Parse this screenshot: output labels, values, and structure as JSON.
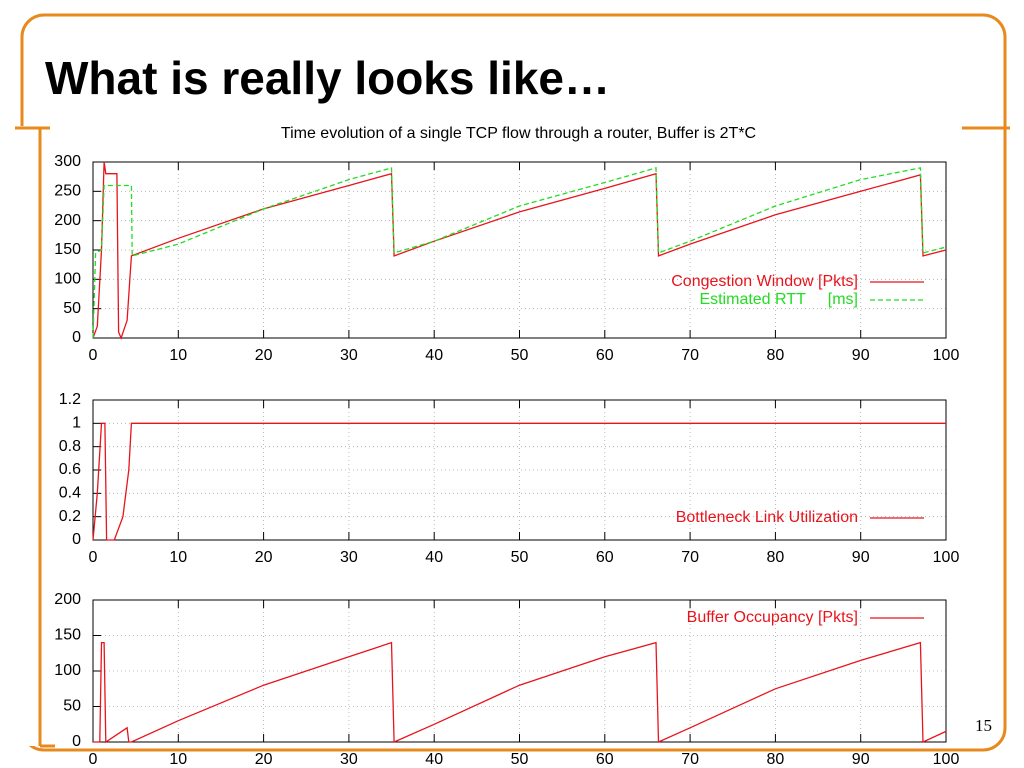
{
  "slide": {
    "title": "What is really looks like…",
    "page_number": "15"
  },
  "chart_data": [
    {
      "type": "line",
      "title": "Time evolution of a single TCP flow through a router, Buffer is 2T*C",
      "xlim": [
        0,
        100
      ],
      "xticks": [
        0,
        10,
        20,
        30,
        40,
        50,
        60,
        70,
        80,
        90,
        100
      ],
      "ylim": [
        0,
        300
      ],
      "yticks": [
        0,
        50,
        100,
        150,
        200,
        250,
        300
      ],
      "grid": true,
      "legend": "lower right",
      "series": [
        {
          "name": "Congestion Window [Pkts]",
          "color": "#e8141c",
          "style": "solid",
          "x": [
            0,
            0.5,
            1,
            1.3,
            1.5,
            2.8,
            3,
            3.3,
            4,
            4.5,
            10,
            20,
            30,
            35,
            35.3,
            40,
            50,
            60,
            66,
            66.3,
            70,
            80,
            90,
            97,
            97.3,
            100
          ],
          "values": [
            0,
            20,
            150,
            300,
            280,
            280,
            10,
            0,
            30,
            140,
            170,
            220,
            260,
            280,
            140,
            165,
            215,
            255,
            280,
            140,
            160,
            210,
            250,
            278,
            140,
            150
          ]
        },
        {
          "name": "Estimated RTT     [ms]",
          "color": "#22dd22",
          "style": "dashed",
          "x": [
            0,
            0.3,
            1,
            1.3,
            4.5,
            4.6,
            10,
            20,
            30,
            35,
            35.3,
            40,
            50,
            60,
            66,
            66.3,
            70,
            80,
            90,
            97,
            97.3,
            100
          ],
          "values": [
            0,
            145,
            150,
            260,
            260,
            140,
            160,
            220,
            270,
            290,
            145,
            165,
            225,
            265,
            290,
            145,
            165,
            225,
            270,
            290,
            145,
            155
          ]
        }
      ]
    },
    {
      "type": "line",
      "xlim": [
        0,
        100
      ],
      "xticks": [
        0,
        10,
        20,
        30,
        40,
        50,
        60,
        70,
        80,
        90,
        100
      ],
      "ylim": [
        0,
        1.2
      ],
      "yticks": [
        0,
        0.2,
        0.4,
        0.6,
        0.8,
        1,
        1.2
      ],
      "grid": true,
      "legend": "lower right",
      "series": [
        {
          "name": "Bottleneck Link Utilization",
          "color": "#e8141c",
          "style": "solid",
          "x": [
            0,
            0.5,
            1,
            1.4,
            1.6,
            2.5,
            3.5,
            4.2,
            4.5,
            100
          ],
          "values": [
            0,
            0.4,
            1,
            1,
            0,
            0,
            0.2,
            0.6,
            1,
            1
          ]
        }
      ]
    },
    {
      "type": "line",
      "xlim": [
        0,
        100
      ],
      "xticks": [
        0,
        10,
        20,
        30,
        40,
        50,
        60,
        70,
        80,
        90,
        100
      ],
      "ylim": [
        0,
        200
      ],
      "yticks": [
        0,
        50,
        100,
        150,
        200
      ],
      "grid": true,
      "legend": "upper right",
      "series": [
        {
          "name": "Buffer Occupancy [Pkts]",
          "color": "#e8141c",
          "style": "solid",
          "x": [
            0,
            0.8,
            1,
            1.3,
            1.5,
            4,
            4.2,
            4.5,
            10,
            20,
            30,
            35,
            35.3,
            40,
            50,
            60,
            66,
            66.3,
            70,
            80,
            90,
            97,
            97.3,
            100
          ],
          "values": [
            0,
            0,
            140,
            140,
            0,
            20,
            0,
            0,
            30,
            80,
            120,
            140,
            0,
            25,
            80,
            120,
            140,
            0,
            20,
            75,
            115,
            140,
            0,
            15
          ]
        }
      ]
    }
  ]
}
